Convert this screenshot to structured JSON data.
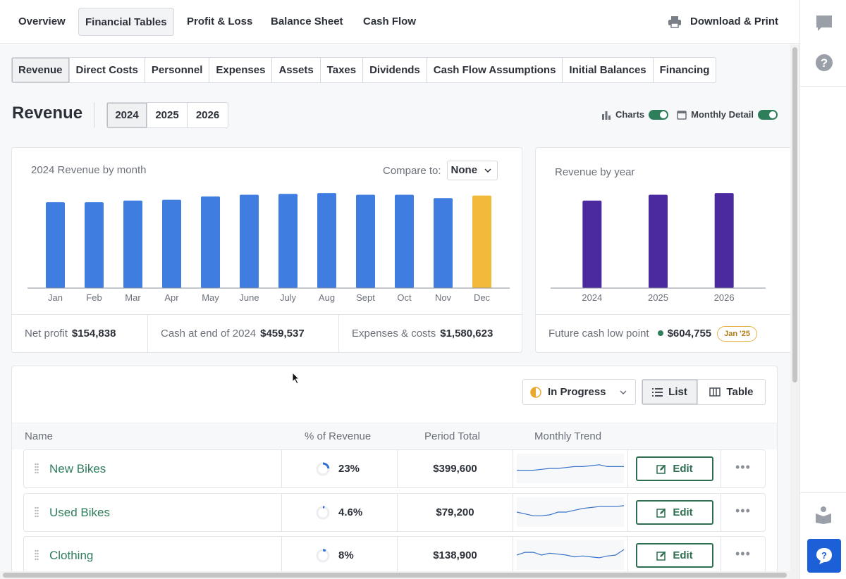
{
  "topnav": {
    "tabs": [
      "Overview",
      "Financial Tables",
      "Profit & Loss",
      "Balance Sheet",
      "Cash Flow"
    ],
    "download": "Download & Print"
  },
  "subtabs": [
    "Revenue",
    "Direct Costs",
    "Personnel",
    "Expenses",
    "Assets",
    "Taxes",
    "Dividends",
    "Cash Flow Assumptions",
    "Initial Balances",
    "Financing"
  ],
  "page": {
    "title": "Revenue",
    "years": [
      "2024",
      "2025",
      "2026"
    ],
    "toggle_charts": "Charts",
    "toggle_monthly": "Monthly Detail"
  },
  "monthly_card": {
    "title": "2024 Revenue by month",
    "compare_label": "Compare to:",
    "compare_value": "None",
    "stats": {
      "net_profit_label": "Net profit",
      "net_profit_value": "$154,838",
      "cash_label": "Cash at end of 2024",
      "cash_value": "$459,537",
      "expenses_label": "Expenses & costs",
      "expenses_value": "$1,580,623"
    }
  },
  "yearly_card": {
    "title": "Revenue by year",
    "low_label": "Future cash low point",
    "low_value": "$604,755",
    "low_badge": "Jan '25"
  },
  "chart_data": [
    {
      "type": "bar",
      "categories": [
        "Jan",
        "Feb",
        "Mar",
        "Apr",
        "May",
        "June",
        "July",
        "Aug",
        "Sept",
        "Oct",
        "Nov",
        "Dec"
      ],
      "values": [
        103,
        103,
        105,
        106,
        110,
        112,
        113,
        114,
        112,
        112,
        108,
        111
      ],
      "highlight_index": 11,
      "colors": {
        "bar": "#3f7de0",
        "highlight": "#f3b93a"
      },
      "ylim": [
        0,
        120
      ]
    },
    {
      "type": "bar",
      "categories": [
        "2024",
        "2025",
        "2026"
      ],
      "values": [
        105,
        112,
        114
      ],
      "colors": {
        "bar": "#4a2a9e"
      },
      "ylim": [
        0,
        120
      ]
    }
  ],
  "list": {
    "status": "In Progress",
    "view_list": "List",
    "view_table": "Table",
    "columns": {
      "name": "Name",
      "pct": "% of Revenue",
      "total": "Period Total",
      "trend": "Monthly Trend"
    },
    "edit_label": "Edit",
    "rows": [
      {
        "name": "New Bikes",
        "pct": "23%",
        "pct_value": 0.23,
        "total": "$399,600",
        "trend": [
          12,
          12,
          12,
          11,
          10,
          10,
          9,
          8,
          8,
          7,
          6,
          8,
          8,
          8
        ]
      },
      {
        "name": "Used Bikes",
        "pct": "4.6%",
        "pct_value": 0.046,
        "total": "$79,200",
        "trend": [
          10,
          12,
          14,
          14,
          13,
          10,
          10,
          8,
          6,
          5,
          4,
          4,
          4,
          3
        ]
      },
      {
        "name": "Clothing",
        "pct": "8%",
        "pct_value": 0.08,
        "total": "$138,900",
        "trend": [
          10,
          7,
          7,
          10,
          8,
          9,
          10,
          12,
          11,
          12,
          13,
          11,
          10,
          4
        ]
      }
    ]
  }
}
